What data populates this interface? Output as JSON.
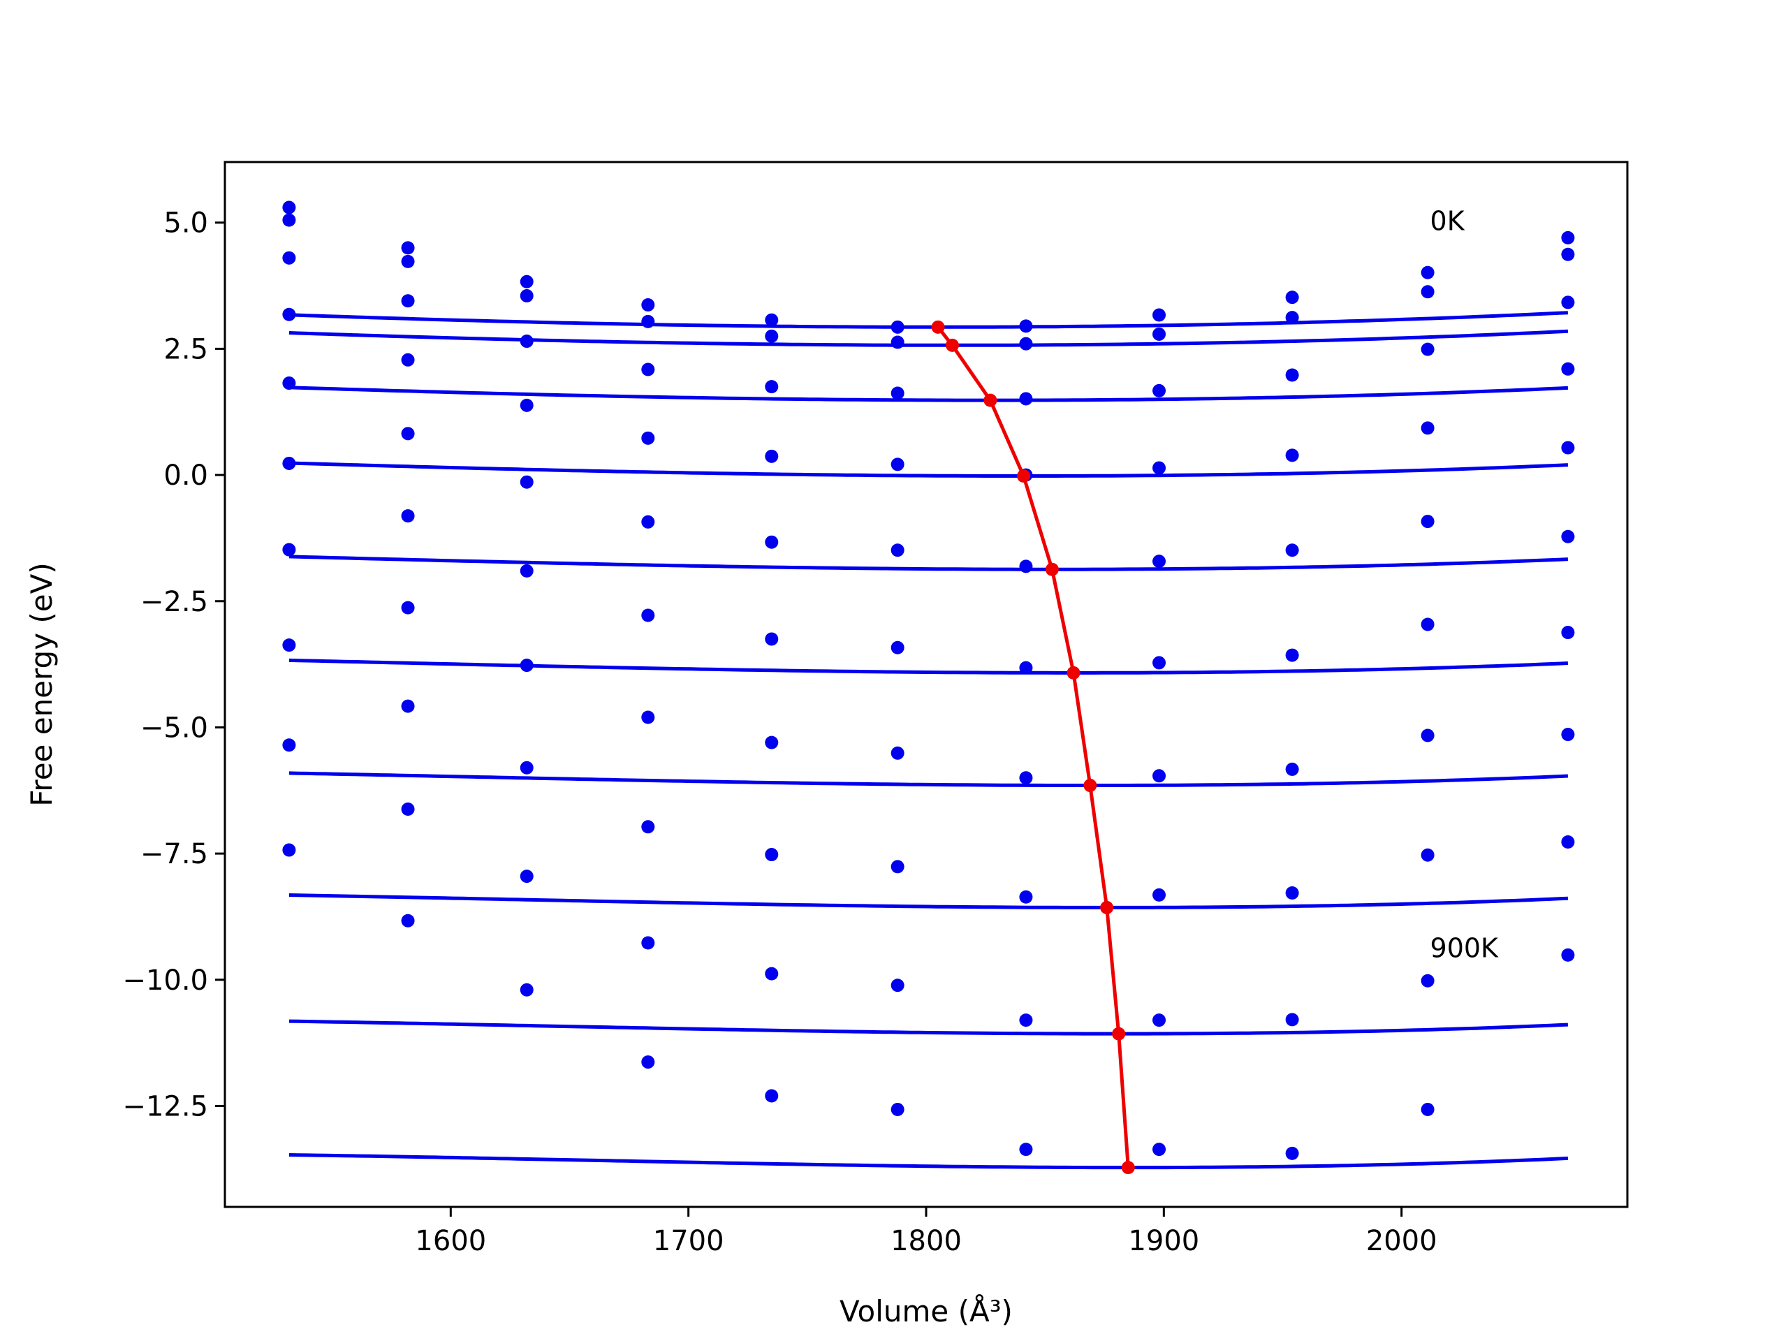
{
  "chart_data": {
    "type": "scatter",
    "xlabel": "Volume (Å³)",
    "ylabel": "Free energy (eV)",
    "xlim": [
      1505,
      2095
    ],
    "ylim": [
      -14.5,
      6.2
    ],
    "x_ticks": [
      1600,
      1700,
      1800,
      1900,
      2000
    ],
    "x_tick_labels": [
      "1600",
      "1700",
      "1800",
      "1900",
      "2000"
    ],
    "y_ticks": [
      5.0,
      2.5,
      0.0,
      -2.5,
      -5.0,
      -7.5,
      -10.0,
      -12.5
    ],
    "y_tick_labels": [
      "5.0",
      "2.5",
      "0.0",
      "−2.5",
      "−5.0",
      "−7.5",
      "−10.0",
      "−12.5"
    ],
    "grid": false,
    "legend": "none",
    "annotations": [
      {
        "text": "0K",
        "x": 2012,
        "y": 4.85
      },
      {
        "text": "900K",
        "x": 2012,
        "y": -9.55
      }
    ],
    "colors": {
      "points": "#0000ee",
      "fits": "#0000ee",
      "minima": "#ee0000"
    },
    "volumes": [
      1532,
      1582,
      1632,
      1683,
      1735,
      1788,
      1842,
      1898,
      1954,
      2011,
      2070
    ],
    "series": [
      {
        "energies": [
          5.3,
          4.5,
          3.83,
          3.37,
          3.07,
          2.93,
          2.95,
          3.17,
          3.52,
          4.01,
          4.7
        ],
        "fit": {
          "vmin": 1805,
          "emin": 2.93,
          "a": 3.67e-06,
          "b": 1.5e-09
        }
      },
      {
        "energies": [
          5.05,
          4.23,
          3.55,
          3.04,
          2.75,
          2.63,
          2.6,
          2.79,
          3.12,
          3.63,
          4.37
        ],
        "fit": {
          "vmin": 1811,
          "emin": 2.57,
          "a": 3.67e-06,
          "b": 1.8e-09
        }
      },
      {
        "energies": [
          4.3,
          3.45,
          2.65,
          2.09,
          1.75,
          1.62,
          1.51,
          1.67,
          1.98,
          2.49,
          3.42
        ],
        "fit": {
          "vmin": 1827,
          "emin": 1.48,
          "a": 3.6e-06,
          "b": 2.3e-09
        }
      },
      {
        "energies": [
          3.18,
          2.28,
          1.38,
          0.73,
          0.37,
          0.21,
          0.0,
          0.14,
          0.39,
          0.93,
          2.1
        ],
        "fit": {
          "vmin": 1841,
          "emin": -0.02,
          "a": 3.55e-06,
          "b": 2.8e-09
        }
      },
      {
        "energies": [
          1.82,
          0.82,
          -0.14,
          -0.93,
          -1.33,
          -1.49,
          -1.81,
          -1.71,
          -1.49,
          -0.92,
          0.54
        ],
        "fit": {
          "vmin": 1853,
          "emin": -1.87,
          "a": 3.55e-06,
          "b": 3.4e-09
        }
      },
      {
        "energies": [
          0.23,
          -0.81,
          -1.9,
          -2.78,
          -3.25,
          -3.42,
          -3.82,
          -3.72,
          -3.57,
          -2.96,
          -1.22
        ],
        "fit": {
          "vmin": 1862,
          "emin": -3.92,
          "a": 3.6e-06,
          "b": 4e-09
        }
      },
      {
        "energies": [
          -1.48,
          -2.63,
          -3.77,
          -4.8,
          -5.3,
          -5.51,
          -6.0,
          -5.96,
          -5.83,
          -5.16,
          -3.12
        ],
        "fit": {
          "vmin": 1869,
          "emin": -6.15,
          "a": 3.7e-06,
          "b": 4.6e-09
        }
      },
      {
        "energies": [
          -3.37,
          -4.58,
          -5.8,
          -6.97,
          -7.52,
          -7.76,
          -8.36,
          -8.32,
          -8.28,
          -7.53,
          -5.14
        ],
        "fit": {
          "vmin": 1876,
          "emin": -8.57,
          "a": 3.85e-06,
          "b": 5.1e-09
        }
      },
      {
        "energies": [
          -5.35,
          -6.62,
          -7.95,
          -9.27,
          -9.88,
          -10.11,
          -10.8,
          -10.8,
          -10.79,
          -10.02,
          -7.27
        ],
        "fit": {
          "vmin": 1881,
          "emin": -11.07,
          "a": 4e-06,
          "b": 5.6e-09
        }
      },
      {
        "energies": [
          -7.43,
          -8.83,
          -10.2,
          -11.63,
          -12.3,
          -12.57,
          -13.36,
          -13.36,
          -13.44,
          -12.57,
          -9.51
        ],
        "fit": {
          "vmin": 1885,
          "emin": -13.72,
          "a": 4.2e-06,
          "b": 6.2e-09
        }
      }
    ],
    "minima": {
      "x": [
        1805,
        1811,
        1827,
        1841,
        1853,
        1862,
        1869,
        1876,
        1881,
        1885
      ],
      "y": [
        2.93,
        2.57,
        1.48,
        -0.02,
        -1.87,
        -3.92,
        -6.15,
        -8.57,
        -11.07,
        -13.72
      ]
    }
  }
}
